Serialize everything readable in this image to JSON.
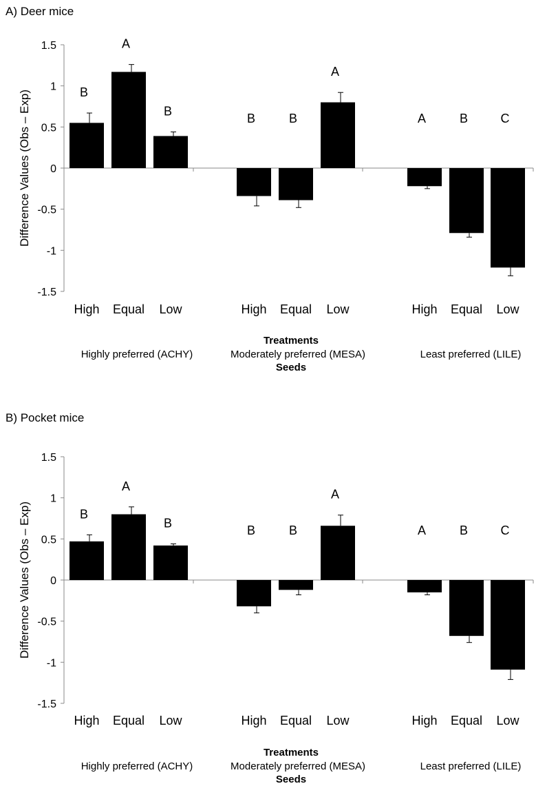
{
  "colors": {
    "bar": "#000000",
    "axis": "#888888",
    "text": "#000000"
  },
  "chart_data": [
    {
      "type": "bar",
      "title": "A) Deer mice",
      "ylabel": "Difference Values (Obs – Exp)",
      "xlabel": "Treatments",
      "group_axis_label": "Seeds",
      "ylim": [
        -1.5,
        1.5
      ],
      "yticks": [
        "1.5",
        "1",
        "0.5",
        "0",
        "-0.5",
        "-1",
        "-1.5"
      ],
      "grid": false,
      "legend": "none",
      "groups": [
        {
          "name": "Highly preferred (ACHY)",
          "bars": [
            {
              "label": "High",
              "value": 0.55,
              "error": 0.12,
              "letter": "B"
            },
            {
              "label": "Equal",
              "value": 1.17,
              "error": 0.09,
              "letter": "A"
            },
            {
              "label": "Low",
              "value": 0.39,
              "error": 0.05,
              "letter": "B"
            }
          ]
        },
        {
          "name": "Moderately preferred (MESA)",
          "bars": [
            {
              "label": "High",
              "value": -0.34,
              "error": 0.12,
              "letter": "B"
            },
            {
              "label": "Equal",
              "value": -0.39,
              "error": 0.09,
              "letter": "B"
            },
            {
              "label": "Low",
              "value": 0.8,
              "error": 0.12,
              "letter": "A"
            }
          ]
        },
        {
          "name": "Least preferred (LILE)",
          "bars": [
            {
              "label": "High",
              "value": -0.22,
              "error": 0.03,
              "letter": "A"
            },
            {
              "label": "Equal",
              "value": -0.79,
              "error": 0.05,
              "letter": "B"
            },
            {
              "label": "Low",
              "value": -1.21,
              "error": 0.1,
              "letter": "C"
            }
          ]
        }
      ]
    },
    {
      "type": "bar",
      "title": "B) Pocket mice",
      "ylabel": "Difference Values (Obs – Exp)",
      "xlabel": "Treatments",
      "group_axis_label": "Seeds",
      "ylim": [
        -1.5,
        1.5
      ],
      "yticks": [
        "1.5",
        "1",
        "0.5",
        "0",
        "-0.5",
        "-1",
        "-1.5"
      ],
      "grid": false,
      "legend": "none",
      "groups": [
        {
          "name": "Highly preferred (ACHY)",
          "bars": [
            {
              "label": "High",
              "value": 0.47,
              "error": 0.08,
              "letter": "B"
            },
            {
              "label": "Equal",
              "value": 0.8,
              "error": 0.09,
              "letter": "A"
            },
            {
              "label": "Low",
              "value": 0.42,
              "error": 0.02,
              "letter": "B"
            }
          ]
        },
        {
          "name": "Moderately preferred (MESA)",
          "bars": [
            {
              "label": "High",
              "value": -0.32,
              "error": 0.08,
              "letter": "B"
            },
            {
              "label": "Equal",
              "value": -0.12,
              "error": 0.06,
              "letter": "B"
            },
            {
              "label": "Low",
              "value": 0.66,
              "error": 0.13,
              "letter": "A"
            }
          ]
        },
        {
          "name": "Least preferred (LILE)",
          "bars": [
            {
              "label": "High",
              "value": -0.15,
              "error": 0.03,
              "letter": "A"
            },
            {
              "label": "Equal",
              "value": -0.68,
              "error": 0.08,
              "letter": "B"
            },
            {
              "label": "Low",
              "value": -1.09,
              "error": 0.12,
              "letter": "C"
            }
          ]
        }
      ]
    }
  ]
}
